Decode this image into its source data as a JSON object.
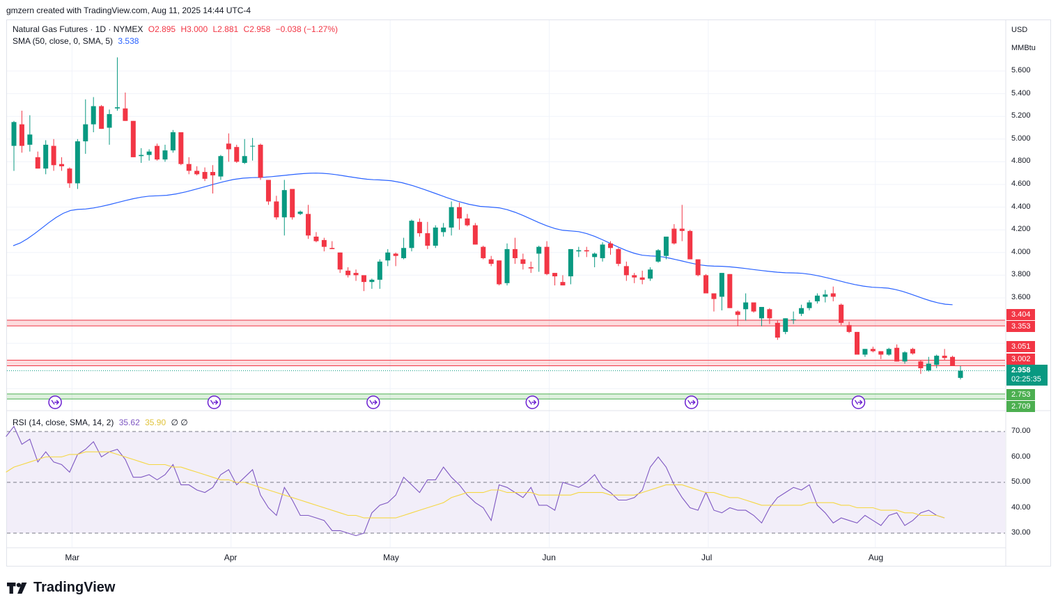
{
  "credit": "gmzern created with TradingView.com, Aug 11, 2025 14:44 UTC-4",
  "brand": "TradingView",
  "legend": {
    "symbol": "Natural Gas Futures · 1D · NYMEX",
    "open": "O2.895",
    "high": "H3.000",
    "low": "L2.881",
    "close": "C2.958",
    "change": "−0.038 (−1.27%)",
    "sma_label": "SMA (50, close, 0, SMA, 5)",
    "sma_value": "3.538",
    "rsi_label": "RSI (14, close, SMA, 14, 2)",
    "rsi_value": "35.62",
    "rsi_ma_value": "35.90",
    "rsi_extra": "∅ ∅"
  },
  "scale": {
    "currency": "USD",
    "unit": "MMBtu"
  },
  "colors": {
    "up": "#089981",
    "down": "#f23645",
    "sma": "#2962ff",
    "rsi": "#7e57c2",
    "rsi_ma": "#f5d742",
    "support": "#4caf50",
    "resistance": "#f23645"
  },
  "chart_data": [
    {
      "type": "candlestick",
      "title": "Natural Gas Futures · 1D · NYMEX",
      "ylim": [
        2.6,
        5.8
      ],
      "y_ticks": [
        "5.600",
        "5.400",
        "5.200",
        "5.000",
        "4.800",
        "4.600",
        "4.400",
        "4.200",
        "4.000",
        "3.800",
        "3.600"
      ],
      "x_ticks": [
        "Mar",
        "Apr",
        "May",
        "Jun",
        "Jul",
        "Aug"
      ],
      "x_ticks_index": [
        8,
        28,
        48,
        68,
        88,
        109
      ],
      "candles": [
        [
          4.94,
          5.16,
          4.72,
          5.15
        ],
        [
          5.13,
          5.25,
          4.88,
          4.94
        ],
        [
          4.95,
          5.21,
          4.89,
          5.04
        ],
        [
          4.84,
          4.89,
          4.74,
          4.74
        ],
        [
          4.74,
          4.99,
          4.69,
          4.95
        ],
        [
          4.94,
          5.0,
          4.72,
          4.77
        ],
        [
          4.78,
          4.84,
          4.72,
          4.76
        ],
        [
          4.74,
          4.75,
          4.57,
          4.61
        ],
        [
          4.61,
          5.0,
          4.56,
          4.98
        ],
        [
          4.98,
          5.35,
          4.87,
          5.13
        ],
        [
          5.13,
          5.37,
          5.06,
          5.29
        ],
        [
          5.29,
          5.3,
          5.09,
          5.09
        ],
        [
          5.1,
          5.26,
          4.95,
          5.22
        ],
        [
          5.27,
          5.72,
          5.25,
          5.28
        ],
        [
          5.27,
          5.41,
          5.16,
          5.16
        ],
        [
          5.16,
          5.16,
          4.84,
          4.84
        ],
        [
          4.85,
          4.92,
          4.79,
          4.86
        ],
        [
          4.86,
          4.91,
          4.81,
          4.89
        ],
        [
          4.94,
          4.96,
          4.81,
          4.82
        ],
        [
          4.82,
          4.95,
          4.8,
          4.9
        ],
        [
          4.9,
          5.08,
          4.88,
          5.06
        ],
        [
          5.06,
          5.06,
          4.77,
          4.78
        ],
        [
          4.78,
          4.84,
          4.69,
          4.72
        ],
        [
          4.72,
          4.76,
          4.68,
          4.69
        ],
        [
          4.71,
          4.75,
          4.63,
          4.65
        ],
        [
          4.71,
          4.77,
          4.52,
          4.68
        ],
        [
          4.67,
          4.86,
          4.64,
          4.85
        ],
        [
          4.96,
          5.05,
          4.8,
          4.91
        ],
        [
          4.93,
          4.95,
          4.79,
          4.8
        ],
        [
          4.79,
          5.0,
          4.78,
          4.85
        ],
        [
          4.94,
          5.01,
          4.81,
          4.94
        ],
        [
          4.95,
          4.96,
          4.64,
          4.66
        ],
        [
          4.64,
          4.64,
          4.42,
          4.45
        ],
        [
          4.45,
          4.5,
          4.29,
          4.31
        ],
        [
          4.31,
          4.64,
          4.15,
          4.55
        ],
        [
          4.56,
          4.56,
          4.29,
          4.31
        ],
        [
          4.34,
          4.37,
          4.33,
          4.36
        ],
        [
          4.34,
          4.42,
          4.12,
          4.15
        ],
        [
          4.14,
          4.18,
          4.09,
          4.1
        ],
        [
          4.11,
          4.13,
          4.01,
          4.05
        ],
        [
          4.04,
          4.1,
          4.03,
          4.03
        ],
        [
          4.0,
          4.0,
          3.82,
          3.85
        ],
        [
          3.84,
          3.87,
          3.78,
          3.8
        ],
        [
          3.82,
          3.85,
          3.75,
          3.8
        ],
        [
          3.8,
          3.8,
          3.66,
          3.74
        ],
        [
          3.74,
          3.77,
          3.68,
          3.76
        ],
        [
          3.76,
          3.94,
          3.68,
          3.92
        ],
        [
          3.93,
          4.03,
          3.88,
          4.0
        ],
        [
          3.99,
          4.0,
          3.88,
          3.97
        ],
        [
          3.95,
          4.13,
          3.94,
          4.04
        ],
        [
          4.04,
          4.29,
          4.01,
          4.28
        ],
        [
          4.27,
          4.3,
          4.14,
          4.17
        ],
        [
          4.17,
          4.27,
          4.03,
          4.06
        ],
        [
          4.06,
          4.24,
          4.04,
          4.22
        ],
        [
          4.18,
          4.26,
          4.14,
          4.22
        ],
        [
          4.22,
          4.45,
          4.15,
          4.4
        ],
        [
          4.4,
          4.44,
          4.2,
          4.3
        ],
        [
          4.3,
          4.34,
          4.23,
          4.24
        ],
        [
          4.24,
          4.26,
          4.07,
          4.07
        ],
        [
          4.05,
          4.06,
          3.94,
          3.95
        ],
        [
          3.94,
          3.97,
          3.88,
          3.9
        ],
        [
          3.93,
          3.93,
          3.71,
          3.72
        ],
        [
          3.73,
          4.08,
          3.71,
          4.03
        ],
        [
          4.03,
          4.13,
          3.9,
          3.95
        ],
        [
          3.94,
          3.99,
          3.85,
          3.9
        ],
        [
          3.87,
          3.92,
          3.82,
          3.86
        ],
        [
          3.99,
          4.06,
          3.83,
          4.05
        ],
        [
          4.05,
          4.1,
          3.8,
          3.81
        ],
        [
          3.82,
          3.82,
          3.71,
          3.79
        ],
        [
          3.74,
          3.8,
          3.71,
          3.71
        ],
        [
          3.79,
          4.03,
          3.72,
          4.03
        ],
        [
          4.01,
          4.05,
          3.96,
          4.02
        ],
        [
          4.02,
          4.05,
          3.96,
          4.01
        ],
        [
          3.96,
          4.0,
          3.87,
          3.99
        ],
        [
          3.95,
          4.09,
          3.92,
          4.07
        ],
        [
          4.08,
          4.1,
          3.98,
          4.04
        ],
        [
          4.03,
          4.04,
          3.88,
          3.9
        ],
        [
          3.88,
          3.92,
          3.75,
          3.8
        ],
        [
          3.8,
          3.82,
          3.73,
          3.78
        ],
        [
          3.78,
          3.84,
          3.72,
          3.76
        ],
        [
          3.77,
          3.87,
          3.75,
          3.85
        ],
        [
          3.92,
          4.03,
          3.91,
          4.02
        ],
        [
          3.97,
          4.14,
          3.94,
          4.14
        ],
        [
          4.21,
          4.25,
          4.07,
          4.08
        ],
        [
          4.21,
          4.42,
          4.1,
          4.19
        ],
        [
          4.19,
          4.2,
          3.94,
          3.94
        ],
        [
          3.94,
          3.94,
          3.79,
          3.8
        ],
        [
          3.8,
          3.81,
          3.65,
          3.64
        ],
        [
          3.64,
          3.64,
          3.48,
          3.59
        ],
        [
          3.61,
          3.82,
          3.49,
          3.82
        ],
        [
          3.81,
          3.81,
          3.51,
          3.51
        ],
        [
          3.48,
          3.49,
          3.35,
          3.45
        ],
        [
          3.5,
          3.64,
          3.4,
          3.56
        ],
        [
          3.56,
          3.56,
          3.47,
          3.48
        ],
        [
          3.42,
          3.52,
          3.35,
          3.52
        ],
        [
          3.5,
          3.51,
          3.37,
          3.42
        ],
        [
          3.38,
          3.4,
          3.23,
          3.25
        ],
        [
          3.3,
          3.42,
          3.28,
          3.42
        ],
        [
          3.41,
          3.48,
          3.37,
          3.41
        ],
        [
          3.46,
          3.54,
          3.44,
          3.51
        ],
        [
          3.51,
          3.58,
          3.49,
          3.56
        ],
        [
          3.57,
          3.64,
          3.55,
          3.62
        ],
        [
          3.61,
          3.67,
          3.56,
          3.63
        ],
        [
          3.64,
          3.7,
          3.57,
          3.61
        ],
        [
          3.54,
          3.55,
          3.36,
          3.38
        ],
        [
          3.36,
          3.39,
          3.29,
          3.3
        ],
        [
          3.3,
          3.3,
          3.1,
          3.1
        ],
        [
          3.1,
          3.15,
          3.08,
          3.15
        ],
        [
          3.15,
          3.17,
          3.12,
          3.13
        ],
        [
          3.13,
          3.13,
          3.06,
          3.1
        ],
        [
          3.1,
          3.16,
          3.09,
          3.15
        ],
        [
          3.16,
          3.19,
          3.04,
          3.04
        ],
        [
          3.04,
          3.13,
          3.02,
          3.12
        ],
        [
          3.15,
          3.16,
          3.1,
          3.11
        ],
        [
          3.04,
          3.05,
          2.93,
          2.98
        ],
        [
          2.96,
          3.08,
          2.95,
          3.02
        ],
        [
          3.01,
          3.1,
          2.98,
          3.09
        ],
        [
          3.09,
          3.15,
          3.05,
          3.07
        ],
        [
          3.08,
          3.09,
          3.0,
          3.0
        ],
        [
          2.895,
          3.0,
          2.881,
          2.958
        ]
      ],
      "series": [
        {
          "name": "SMA (50, close, 0, SMA, 5)",
          "x": [
            -1,
            8,
            18,
            30,
            38,
            46,
            60,
            70,
            80,
            88,
            98,
            109,
            118
          ],
          "values": [
            4.05,
            4.38,
            4.5,
            4.66,
            4.7,
            4.64,
            4.4,
            4.19,
            3.97,
            3.88,
            3.82,
            3.69,
            3.54
          ]
        }
      ],
      "horizontal_levels": [
        {
          "label": "3.404",
          "value": 3.404,
          "color": "#f23645"
        },
        {
          "label": "3.353",
          "value": 3.353,
          "color": "#f23645"
        },
        {
          "label": "3.051",
          "value": 3.051,
          "color": "#f23645"
        },
        {
          "label": "3.002",
          "value": 3.002,
          "color": "#f23645"
        },
        {
          "label": "2.753",
          "value": 2.753,
          "color": "#4caf50"
        },
        {
          "label": "2.709",
          "value": 2.709,
          "color": "#4caf50"
        }
      ],
      "last_price": {
        "value": 2.958,
        "label": "2.958",
        "countdown": "02:25:35"
      },
      "event_markers_index": [
        5,
        25,
        45,
        65,
        85,
        106
      ]
    },
    {
      "type": "line",
      "title": "RSI (14, close, SMA, 14, 2)",
      "ylim": [
        25,
        75
      ],
      "y_ticks": [
        "70.00",
        "60.00",
        "50.00",
        "40.00",
        "30.00"
      ],
      "bands": [
        30,
        50,
        70
      ],
      "series": [
        {
          "name": "RSI",
          "values": [
            68,
            72,
            65,
            67,
            58,
            62,
            58,
            57,
            54,
            61,
            63,
            66,
            60,
            62,
            63,
            59,
            52,
            52,
            53,
            51,
            53,
            57,
            49,
            49,
            47,
            46,
            48,
            53,
            55,
            49,
            52,
            55,
            45,
            40,
            37,
            48,
            43,
            37,
            37,
            36,
            35,
            31,
            31,
            30,
            29,
            30,
            38,
            41,
            42,
            45,
            52,
            49,
            46,
            51,
            51,
            56,
            52,
            49,
            45,
            42,
            40,
            35,
            49,
            48,
            46,
            44,
            48,
            41,
            41,
            39,
            50,
            49,
            48,
            50,
            53,
            48,
            46,
            43,
            43,
            44,
            47,
            56,
            60,
            56,
            49,
            44,
            40,
            39,
            46,
            39,
            38,
            40,
            39,
            39,
            37,
            34,
            40,
            44,
            46,
            48,
            47,
            49,
            41,
            38,
            34,
            36,
            35,
            34,
            37,
            35,
            33,
            37,
            38,
            33,
            35,
            38,
            39,
            37,
            36
          ],
          "color": "#7e57c2"
        },
        {
          "name": "RSI-based MA",
          "values": [
            54,
            56,
            57,
            58,
            59,
            60,
            60,
            60,
            61,
            61,
            62,
            62,
            62,
            62,
            61,
            60,
            59,
            58,
            57,
            57,
            57,
            56,
            56,
            55,
            54,
            53,
            52,
            51,
            51,
            50,
            50,
            49,
            48,
            47,
            46,
            45,
            44,
            43,
            42,
            41,
            40,
            39,
            38,
            37,
            37,
            36,
            36,
            36,
            36,
            36,
            37,
            38,
            39,
            40,
            41,
            42,
            44,
            45,
            46,
            46,
            46,
            47,
            47,
            46,
            46,
            46,
            46,
            45,
            45,
            45,
            45,
            45,
            46,
            46,
            46,
            46,
            45,
            45,
            45,
            45,
            46,
            47,
            48,
            49,
            49,
            49,
            48,
            47,
            46,
            46,
            45,
            44,
            44,
            43,
            42,
            41,
            41,
            41,
            41,
            41,
            41,
            42,
            42,
            42,
            42,
            41,
            41,
            40,
            40,
            40,
            39,
            39,
            39,
            38,
            38,
            37,
            37,
            37,
            36
          ],
          "color": "#f5d742"
        }
      ]
    }
  ]
}
